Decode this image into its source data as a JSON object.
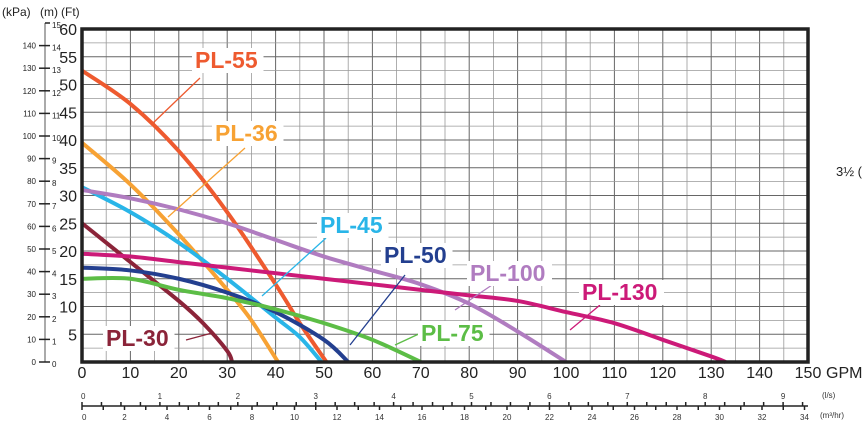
{
  "chart_data": {
    "type": "line",
    "title": "",
    "xlabel": "GPM",
    "ylabel": "(Ft)",
    "xlim": [
      0,
      150
    ],
    "ylim": [
      0,
      60
    ],
    "grid": true,
    "x_ticks": [
      "0",
      "10",
      "20",
      "30",
      "40",
      "50",
      "60",
      "70",
      "80",
      "90",
      "100",
      "110",
      "120",
      "130",
      "140",
      "150"
    ],
    "y_ticks": [
      "5",
      "10",
      "15",
      "20",
      "25",
      "30",
      "35",
      "40",
      "45",
      "50",
      "55",
      "60"
    ],
    "secondary_y_axes": [
      {
        "label": "(kPa)",
        "ticks": [
          "0",
          "10",
          "20",
          "30",
          "40",
          "50",
          "60",
          "70",
          "80",
          "90",
          "100",
          "110",
          "120",
          "130",
          "140"
        ]
      },
      {
        "label": "(m)",
        "ticks": [
          "0",
          "1",
          "2",
          "3",
          "4",
          "5",
          "6",
          "7",
          "8",
          "9",
          "10",
          "11",
          "12",
          "13",
          "14",
          "15"
        ]
      }
    ],
    "secondary_x_axes": [
      {
        "label": "(l/s)",
        "ticks": [
          "0",
          "1",
          "2",
          "3",
          "4",
          "5",
          "6",
          "7",
          "8",
          "9"
        ]
      },
      {
        "label": "(m³/hr)",
        "ticks": [
          "0",
          "2",
          "4",
          "6",
          "8",
          "10",
          "12",
          "14",
          "16",
          "18",
          "20",
          "22",
          "24",
          "26",
          "28",
          "30",
          "32",
          "34"
        ]
      }
    ],
    "side_note": "3½ (",
    "series": [
      {
        "name": "PL-55",
        "color": "#ee5a2f",
        "x": [
          0,
          10,
          20,
          30,
          40,
          45,
          50.5
        ],
        "y": [
          52.5,
          46.5,
          38,
          27,
          14,
          7,
          0
        ]
      },
      {
        "name": "PL-36",
        "color": "#f7a234",
        "x": [
          0,
          10,
          20,
          30,
          35,
          40.5
        ],
        "y": [
          39.5,
          32,
          23,
          13,
          7.5,
          0
        ]
      },
      {
        "name": "PL-45",
        "color": "#29b5e8",
        "x": [
          0,
          10,
          20,
          30,
          40,
          45,
          49.5
        ],
        "y": [
          31.5,
          27,
          21.5,
          15,
          8,
          4.5,
          0
        ]
      },
      {
        "name": "PL-30",
        "color": "#8b2439",
        "x": [
          0,
          10,
          20,
          25,
          30,
          31
        ],
        "y": [
          25,
          18,
          11,
          7,
          2,
          0
        ]
      },
      {
        "name": "PL-50",
        "color": "#233f8f",
        "x": [
          0,
          10,
          20,
          30,
          40,
          50,
          55
        ],
        "y": [
          17,
          16.5,
          15,
          12.5,
          9,
          4,
          0
        ]
      },
      {
        "name": "PL-75",
        "color": "#5cbd46",
        "x": [
          0,
          10,
          20,
          30,
          40,
          50,
          60,
          70
        ],
        "y": [
          15,
          15,
          13,
          11.5,
          9.5,
          7,
          4,
          0
        ]
      },
      {
        "name": "PL-100",
        "color": "#b07cc0",
        "x": [
          0,
          10,
          20,
          30,
          40,
          50,
          60,
          70,
          80,
          90,
          100
        ],
        "y": [
          31,
          29.5,
          27.5,
          25,
          22,
          19,
          16.5,
          14,
          10.5,
          5.5,
          0
        ]
      },
      {
        "name": "PL-130",
        "color": "#cc1a78",
        "x": [
          0,
          10,
          20,
          30,
          40,
          50,
          60,
          70,
          80,
          90,
          100,
          110,
          120,
          130,
          133
        ],
        "y": [
          19.5,
          19,
          18,
          17,
          16,
          15,
          14,
          13,
          12,
          11,
          9,
          7,
          4,
          1,
          0
        ]
      }
    ]
  }
}
